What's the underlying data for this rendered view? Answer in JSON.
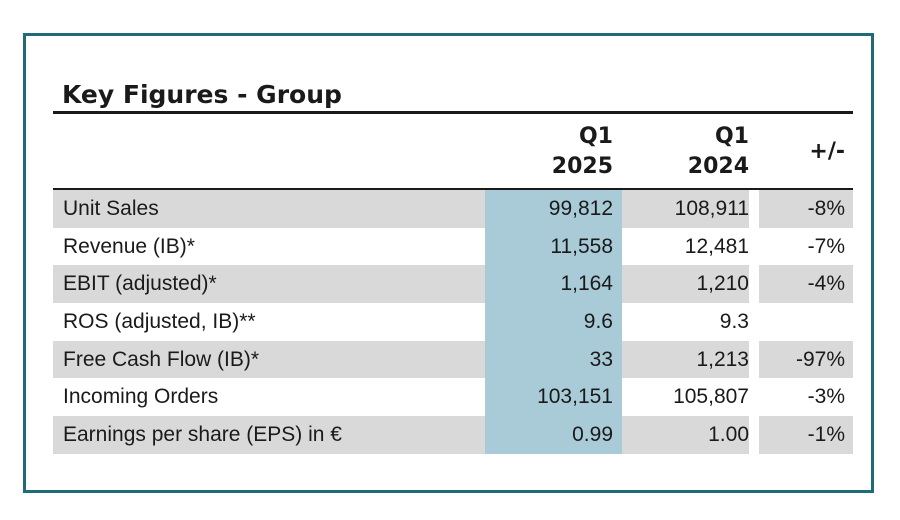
{
  "table": {
    "title": "Key Figures - Group",
    "columns": [
      {
        "line1": "Q1",
        "line2": "2025"
      },
      {
        "line1": "Q1",
        "line2": "2024"
      },
      {
        "line1": "+/-",
        "line2": ""
      }
    ],
    "rows": [
      {
        "label": "Unit Sales",
        "q1_2025": "99,812",
        "q1_2024": "108,911",
        "change": "-8%"
      },
      {
        "label": "Revenue (IB)*",
        "q1_2025": "11,558",
        "q1_2024": "12,481",
        "change": "-7%"
      },
      {
        "label": "EBIT (adjusted)*",
        "q1_2025": "1,164",
        "q1_2024": "1,210",
        "change": "-4%"
      },
      {
        "label": "ROS (adjusted, IB)**",
        "q1_2025": "9.6",
        "q1_2024": "9.3",
        "change": ""
      },
      {
        "label": "Free Cash Flow (IB)*",
        "q1_2025": "33",
        "q1_2024": "1,213",
        "change": "-97%"
      },
      {
        "label": "Incoming Orders",
        "q1_2025": "103,151",
        "q1_2024": "105,807",
        "change": "-3%"
      },
      {
        "label": "Earnings per share (EPS) in €",
        "q1_2025": "0.99",
        "q1_2024": "1.00",
        "change": "-1%"
      }
    ]
  },
  "colors": {
    "frame": "#1f6b7a",
    "row_shade": "#d9d9d9",
    "highlight_column": "#a9cbd8"
  }
}
